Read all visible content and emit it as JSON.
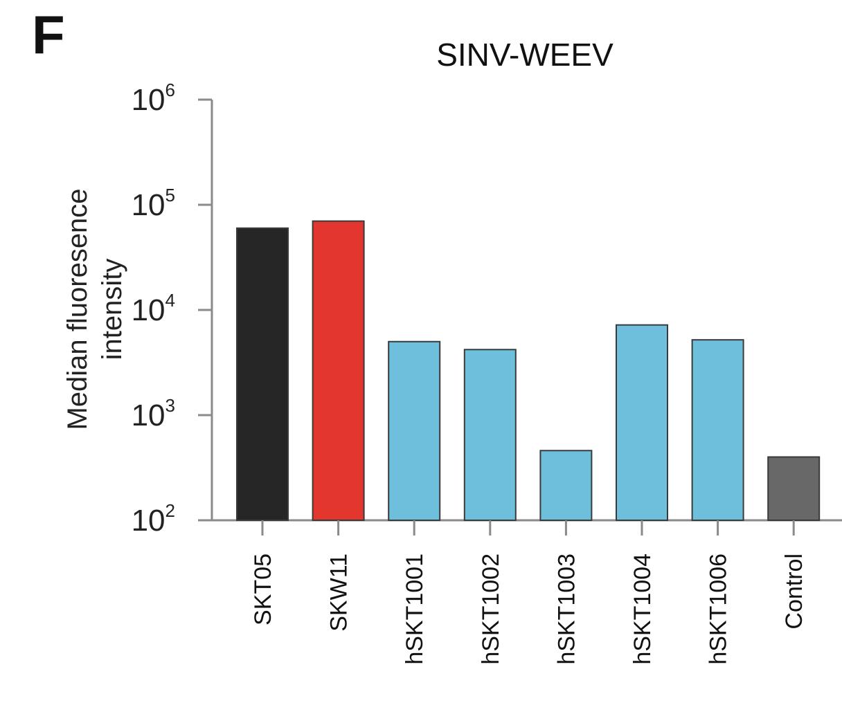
{
  "panel_label": "F",
  "chart_data": {
    "type": "bar",
    "title": "SINV-WEEV",
    "ylabel_lines": [
      "Median fluoresence",
      "intensity"
    ],
    "xlabel": "",
    "yscale": "log",
    "ylim": [
      100,
      1000000
    ],
    "yticks": [
      {
        "base": "10",
        "exp": "2",
        "value": 100
      },
      {
        "base": "10",
        "exp": "3",
        "value": 1000
      },
      {
        "base": "10",
        "exp": "4",
        "value": 10000
      },
      {
        "base": "10",
        "exp": "5",
        "value": 100000
      },
      {
        "base": "10",
        "exp": "6",
        "value": 1000000
      }
    ],
    "categories": [
      "SKT05",
      "SKW11",
      "hSKT1001",
      "hSKT1002",
      "hSKT1003",
      "hSKT1004",
      "hSKT1006",
      "Control"
    ],
    "values": [
      60000,
      70000,
      5000,
      4200,
      460,
      7200,
      5200,
      400
    ],
    "colors": [
      "#262626",
      "#e2362f",
      "#6dbfdc",
      "#6dbfdc",
      "#6dbfdc",
      "#6dbfdc",
      "#6dbfdc",
      "#686868"
    ],
    "grid": false,
    "legend": "none"
  }
}
